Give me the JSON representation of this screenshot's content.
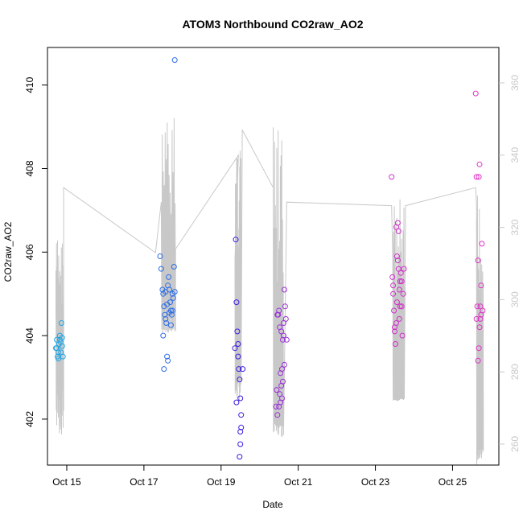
{
  "chart_data": {
    "type": "scatter",
    "title": "ATOM3 Northbound CO2raw_AO2",
    "xlabel": "Date",
    "ylabel": "CO2raw_AO2",
    "x_unit": "days",
    "x_ticks": [
      {
        "value": 15,
        "label": "Oct 15"
      },
      {
        "value": 17,
        "label": "Oct 17"
      },
      {
        "value": 19,
        "label": "Oct 19"
      },
      {
        "value": 21,
        "label": "Oct 21"
      },
      {
        "value": 23,
        "label": "Oct 23"
      },
      {
        "value": 25,
        "label": "Oct 25"
      }
    ],
    "xlim": [
      14.5,
      26.2
    ],
    "ylim": [
      400.9,
      410.9
    ],
    "y_ticks": [
      402,
      404,
      406,
      408,
      410
    ],
    "y2lim": [
      254.2,
      369.8
    ],
    "y2_ticks": [
      260,
      280,
      300,
      320,
      340,
      360
    ],
    "grid": false,
    "line_color": "#c8c8c8",
    "right_axis_color": "#c8c8c8",
    "series": [
      {
        "color": "#1ea7e8",
        "points": [
          [
            14.72,
            403.7
          ],
          [
            14.74,
            403.9
          ],
          [
            14.76,
            403.5
          ],
          [
            14.78,
            403.6
          ],
          [
            14.8,
            403.8
          ],
          [
            14.82,
            404.0
          ],
          [
            14.84,
            403.85
          ],
          [
            14.86,
            404.3
          ],
          [
            14.88,
            403.75
          ],
          [
            14.9,
            403.5
          ],
          [
            14.78,
            403.45
          ],
          [
            14.82,
            403.9
          ],
          [
            14.85,
            403.6
          ],
          [
            14.74,
            403.7
          ],
          [
            14.88,
            403.95
          ]
        ]
      },
      {
        "color": "#2f6ee8",
        "points": [
          [
            17.42,
            405.9
          ],
          [
            17.45,
            405.6
          ],
          [
            17.48,
            405.1
          ],
          [
            17.5,
            405.0
          ],
          [
            17.52,
            404.7
          ],
          [
            17.54,
            404.5
          ],
          [
            17.56,
            404.4
          ],
          [
            17.58,
            404.3
          ],
          [
            17.6,
            403.5
          ],
          [
            17.62,
            403.4
          ],
          [
            17.52,
            403.2
          ],
          [
            17.5,
            404.0
          ],
          [
            17.64,
            405.4
          ],
          [
            17.66,
            405.1
          ],
          [
            17.68,
            404.8
          ],
          [
            17.7,
            404.6
          ],
          [
            17.72,
            404.5
          ],
          [
            17.74,
            405.0
          ],
          [
            17.76,
            404.9
          ],
          [
            17.78,
            405.65
          ],
          [
            17.8,
            405.05
          ],
          [
            17.8,
            410.6
          ],
          [
            17.6,
            404.75
          ],
          [
            17.62,
            405.2
          ],
          [
            17.7,
            404.25
          ],
          [
            17.66,
            404.55
          ],
          [
            17.56,
            405.05
          ],
          [
            17.74,
            404.6
          ]
        ]
      },
      {
        "color": "#3c1ee0",
        "points": [
          [
            19.38,
            406.3
          ],
          [
            19.4,
            404.8
          ],
          [
            19.42,
            404.1
          ],
          [
            19.44,
            403.8
          ],
          [
            19.46,
            403.2
          ],
          [
            19.48,
            402.95
          ],
          [
            19.5,
            402.5
          ],
          [
            19.52,
            402.1
          ],
          [
            19.5,
            401.7
          ],
          [
            19.48,
            401.1
          ],
          [
            19.52,
            401.8
          ],
          [
            19.5,
            401.4
          ],
          [
            19.56,
            403.2
          ],
          [
            19.4,
            402.4
          ],
          [
            19.36,
            403.7
          ],
          [
            19.44,
            403.5
          ]
        ]
      },
      {
        "color": "#9a30d8",
        "points": [
          [
            20.42,
            402.3
          ],
          [
            20.44,
            402.7
          ],
          [
            20.46,
            402.1
          ],
          [
            20.48,
            404.5
          ],
          [
            20.5,
            404.6
          ],
          [
            20.52,
            404.2
          ],
          [
            20.54,
            403.1
          ],
          [
            20.56,
            402.8
          ],
          [
            20.58,
            402.5
          ],
          [
            20.6,
            403.9
          ],
          [
            20.62,
            404.3
          ],
          [
            20.64,
            405.1
          ],
          [
            20.64,
            403.3
          ],
          [
            20.6,
            402.9
          ],
          [
            20.66,
            404.7
          ],
          [
            20.68,
            404.4
          ],
          [
            20.7,
            403.9
          ],
          [
            20.52,
            402.6
          ],
          [
            20.54,
            402.4
          ],
          [
            20.56,
            404.1
          ],
          [
            20.5,
            402.3
          ],
          [
            20.46,
            404.5
          ],
          [
            20.58,
            403.2
          ],
          [
            20.62,
            404.0
          ]
        ]
      },
      {
        "color": "#d030c8",
        "points": [
          [
            23.42,
            407.8
          ],
          [
            23.44,
            405.4
          ],
          [
            23.46,
            405.0
          ],
          [
            23.48,
            404.6
          ],
          [
            23.5,
            404.2
          ],
          [
            23.52,
            403.8
          ],
          [
            23.54,
            404.3
          ],
          [
            23.56,
            405.9
          ],
          [
            23.58,
            406.7
          ],
          [
            23.6,
            405.6
          ],
          [
            23.62,
            405.1
          ],
          [
            23.64,
            404.7
          ],
          [
            23.66,
            405.5
          ],
          [
            23.68,
            405.3
          ],
          [
            23.7,
            404.0
          ],
          [
            23.72,
            405.0
          ],
          [
            23.74,
            405.6
          ],
          [
            23.6,
            406.5
          ],
          [
            23.58,
            405.8
          ],
          [
            23.56,
            404.8
          ],
          [
            23.5,
            404.1
          ],
          [
            23.46,
            405.2
          ],
          [
            23.64,
            405.3
          ],
          [
            23.68,
            404.7
          ],
          [
            23.54,
            406.6
          ],
          [
            23.62,
            404.4
          ]
        ]
      },
      {
        "color": "#e030c8",
        "points": [
          [
            25.62,
            407.8
          ],
          [
            25.64,
            404.7
          ],
          [
            25.66,
            403.4
          ],
          [
            25.68,
            403.7
          ],
          [
            25.7,
            404.2
          ],
          [
            25.72,
            404.7
          ],
          [
            25.74,
            405.2
          ],
          [
            25.76,
            406.2
          ],
          [
            25.78,
            404.6
          ],
          [
            25.66,
            405.8
          ],
          [
            25.68,
            407.8
          ],
          [
            25.7,
            408.1
          ],
          [
            25.6,
            409.8
          ],
          [
            25.62,
            404.4
          ],
          [
            25.74,
            404.5
          ],
          [
            25.72,
            404.4
          ]
        ]
      }
    ]
  }
}
